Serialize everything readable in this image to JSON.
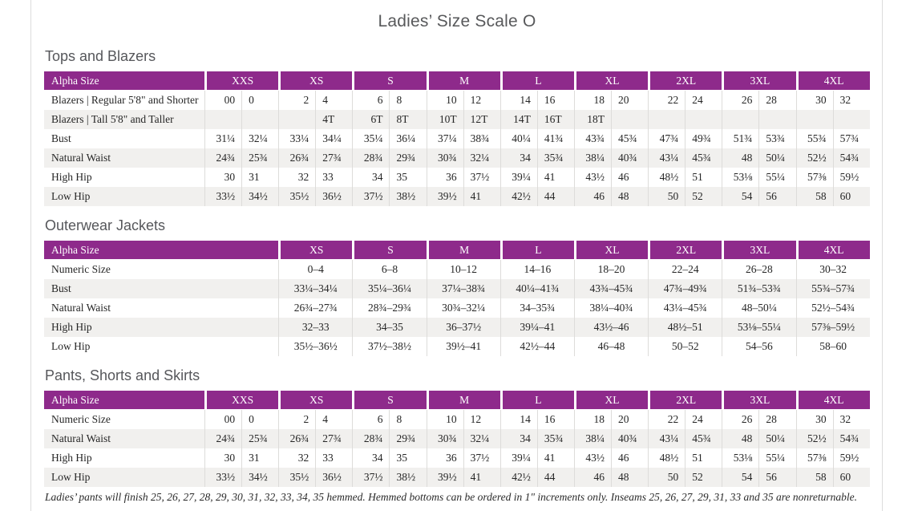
{
  "page": {
    "title": "Ladies’ Size Scale O",
    "footnote": "Ladies’ pants will finish 25, 26, 27, 28, 29, 30, 31, 32, 33, 34, 35 hemmed. Hemmed bottoms can be ordered in 1\" increments only. Inseams 25, 26, 27, 29, 31, 33 and 35 are nonreturnable."
  },
  "colors": {
    "header_purple": "#8e2a8b",
    "stripe_gray": "#f1f0ee",
    "heading_gray": "#58595b"
  },
  "tables": [
    {
      "heading": "Tops and Blazers",
      "header_label": "Alpha Size",
      "split": true,
      "sizes": [
        "XXS",
        "XS",
        "S",
        "M",
        "L",
        "XL",
        "2XL",
        "3XL",
        "4XL"
      ],
      "rows": [
        {
          "label": "Blazers  |  Regular 5'8\" and Shorter",
          "values": [
            "00",
            "0",
            "2",
            "4",
            "6",
            "8",
            "10",
            "12",
            "14",
            "16",
            "18",
            "20",
            "22",
            "24",
            "26",
            "28",
            "30",
            "32"
          ]
        },
        {
          "label": "Blazers  |  Tall 5'8\" and Taller",
          "values": [
            "",
            "",
            "",
            "4T",
            "6T",
            "8T",
            "10T",
            "12T",
            "14T",
            "16T",
            "18T",
            "",
            "",
            "",
            "",
            "",
            "",
            ""
          ]
        },
        {
          "label": "Bust",
          "values": [
            "31¼",
            "32¼",
            "33¼",
            "34¼",
            "35¼",
            "36¼",
            "37¼",
            "38¾",
            "40¼",
            "41¾",
            "43¾",
            "45¾",
            "47¾",
            "49¾",
            "51¾",
            "53¾",
            "55¾",
            "57¾"
          ]
        },
        {
          "label": "Natural Waist",
          "values": [
            "24¾",
            "25¾",
            "26¾",
            "27¾",
            "28¾",
            "29¾",
            "30¾",
            "32¼",
            "34",
            "35¾",
            "38¼",
            "40¾",
            "43¼",
            "45¾",
            "48",
            "50¼",
            "52½",
            "54¾"
          ]
        },
        {
          "label": "High Hip",
          "values": [
            "30",
            "31",
            "32",
            "33",
            "34",
            "35",
            "36",
            "37½",
            "39¼",
            "41",
            "43½",
            "46",
            "48½",
            "51",
            "53⅛",
            "55¼",
            "57⅜",
            "59½"
          ]
        },
        {
          "label": "Low Hip",
          "values": [
            "33½",
            "34½",
            "35½",
            "36½",
            "37½",
            "38½",
            "39½",
            "41",
            "42½",
            "44",
            "46",
            "48",
            "50",
            "52",
            "54",
            "56",
            "58",
            "60"
          ]
        }
      ]
    },
    {
      "heading": "Outerwear Jackets",
      "header_label": "Alpha Size",
      "split": false,
      "sizes": [
        "XS",
        "S",
        "M",
        "L",
        "XL",
        "2XL",
        "3XL",
        "4XL"
      ],
      "rows": [
        {
          "label": "Numeric Size",
          "values": [
            "0–4",
            "6–8",
            "10–12",
            "14–16",
            "18–20",
            "22–24",
            "26–28",
            "30–32"
          ]
        },
        {
          "label": "Bust",
          "values": [
            "33¼–34¼",
            "35¼–36¼",
            "37¼–38¾",
            "40¼–41¾",
            "43¾–45¾",
            "47¾–49¾",
            "51¾–53¾",
            "55¾–57¾"
          ]
        },
        {
          "label": "Natural Waist",
          "values": [
            "26¾–27¾",
            "28¾–29¾",
            "30¾–32¼",
            "34–35¾",
            "38¼–40¾",
            "43¼–45¾",
            "48–50¼",
            "52½–54¾"
          ]
        },
        {
          "label": "High Hip",
          "values": [
            "32–33",
            "34–35",
            "36–37½",
            "39¼–41",
            "43½–46",
            "48½–51",
            "53⅛–55¼",
            "57⅜–59½"
          ]
        },
        {
          "label": "Low Hip",
          "values": [
            "35½–36½",
            "37½–38½",
            "39½–41",
            "42½–44",
            "46–48",
            "50–52",
            "54–56",
            "58–60"
          ]
        }
      ]
    },
    {
      "heading": "Pants, Shorts and Skirts",
      "header_label": "Alpha Size",
      "split": true,
      "sizes": [
        "XXS",
        "XS",
        "S",
        "M",
        "L",
        "XL",
        "2XL",
        "3XL",
        "4XL"
      ],
      "rows": [
        {
          "label": "Numeric Size",
          "values": [
            "00",
            "0",
            "2",
            "4",
            "6",
            "8",
            "10",
            "12",
            "14",
            "16",
            "18",
            "20",
            "22",
            "24",
            "26",
            "28",
            "30",
            "32"
          ]
        },
        {
          "label": "Natural Waist",
          "values": [
            "24¾",
            "25¾",
            "26¾",
            "27¾",
            "28¾",
            "29¾",
            "30¾",
            "32¼",
            "34",
            "35¾",
            "38¼",
            "40¾",
            "43¼",
            "45¾",
            "48",
            "50¼",
            "52½",
            "54¾"
          ]
        },
        {
          "label": "High Hip",
          "values": [
            "30",
            "31",
            "32",
            "33",
            "34",
            "35",
            "36",
            "37½",
            "39¼",
            "41",
            "43½",
            "46",
            "48½",
            "51",
            "53⅛",
            "55¼",
            "57⅜",
            "59½"
          ]
        },
        {
          "label": "Low Hip",
          "values": [
            "33½",
            "34½",
            "35½",
            "36½",
            "37½",
            "38½",
            "39½",
            "41",
            "42½",
            "44",
            "46",
            "48",
            "50",
            "52",
            "54",
            "56",
            "58",
            "60"
          ]
        }
      ]
    }
  ]
}
